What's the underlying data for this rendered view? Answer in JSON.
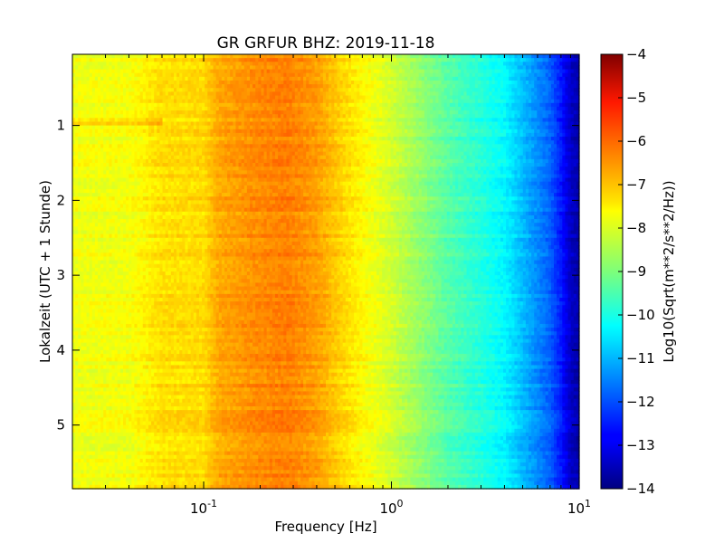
{
  "chart_data": {
    "type": "heatmap",
    "title": "GR GRFUR BHZ: 2019-11-18",
    "xlabel": "Frequency [Hz]",
    "ylabel": "Lokalzeit (UTC + 1 Stunde)",
    "xscale": "log",
    "xlim": [
      0.02,
      10
    ],
    "ylim": [
      5.85,
      0.05
    ],
    "x_ticks": [
      {
        "base": "10",
        "exp": "-1",
        "value": 0.1
      },
      {
        "base": "10",
        "exp": "0",
        "value": 1
      },
      {
        "base": "10",
        "exp": "1",
        "value": 10
      }
    ],
    "y_ticks": [
      {
        "label": "1",
        "value": 1
      },
      {
        "label": "2",
        "value": 2
      },
      {
        "label": "3",
        "value": 3
      },
      {
        "label": "4",
        "value": 4
      },
      {
        "label": "5",
        "value": 5
      }
    ],
    "colormap": "jet",
    "colorbar": {
      "label": "Log10(Sqrt(m**2/s**2/Hz))",
      "min": -14,
      "max": -4,
      "ticks": [
        {
          "label": "−4",
          "value": -4
        },
        {
          "label": "−5",
          "value": -5
        },
        {
          "label": "−6",
          "value": -6
        },
        {
          "label": "−7",
          "value": -7
        },
        {
          "label": "−8",
          "value": -8
        },
        {
          "label": "−9",
          "value": -9
        },
        {
          "label": "−10",
          "value": -10
        },
        {
          "label": "−11",
          "value": -11
        },
        {
          "label": "−12",
          "value": -12
        },
        {
          "label": "−13",
          "value": -13
        },
        {
          "label": "−14",
          "value": -14
        }
      ]
    },
    "spectrum_profile": {
      "frequency_hz": [
        0.02,
        0.04,
        0.06,
        0.1,
        0.12,
        0.2,
        0.28,
        0.4,
        0.6,
        1.0,
        1.5,
        2.0,
        3.0,
        4.0,
        5.0,
        6.0,
        7.0,
        8.0,
        9.0,
        10.0
      ],
      "log10_amplitude": [
        -7.9,
        -7.85,
        -7.45,
        -7.4,
        -6.9,
        -6.6,
        -6.5,
        -6.8,
        -7.5,
        -8.2,
        -8.9,
        -9.4,
        -9.9,
        -10.3,
        -10.9,
        -11.4,
        -11.8,
        -12.5,
        -13.3,
        -13.6
      ]
    }
  }
}
